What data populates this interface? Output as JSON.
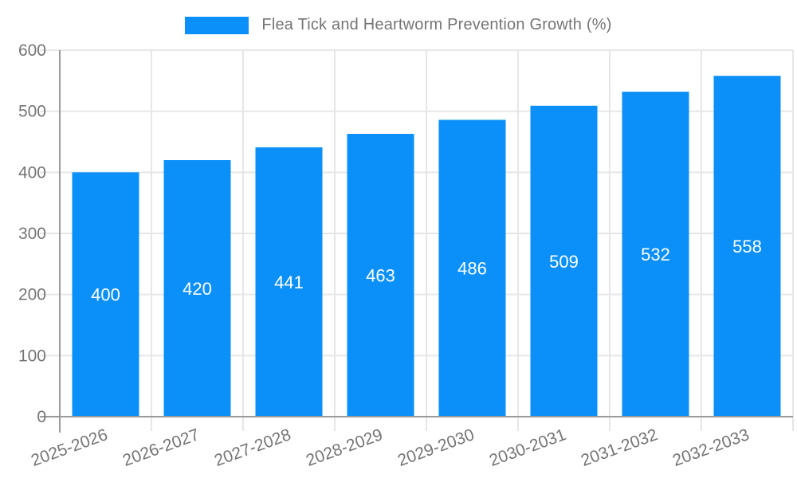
{
  "colors": {
    "bar": "#0a90f8",
    "axis": "#9a9a9a",
    "grid": "#e6e6e6",
    "text": "#757575",
    "value_label": "#ffffff",
    "background": "#ffffff"
  },
  "chart_data": {
    "type": "bar",
    "title": "Flea Tick and Heartworm Prevention Growth (%)",
    "categories": [
      "2025-2026",
      "2026-2027",
      "2027-2028",
      "2028-2029",
      "2029-2030",
      "2030-2031",
      "2031-2032",
      "2032-2033"
    ],
    "values": [
      400,
      420,
      441,
      463,
      486,
      509,
      532,
      558
    ],
    "xlabel": "",
    "ylabel": "",
    "ylim": [
      0,
      600
    ],
    "yticks": [
      0,
      100,
      200,
      300,
      400,
      500,
      600
    ],
    "grid": true,
    "legend_position": "top",
    "bar_labels_inside": true,
    "x_tick_rotation_deg": -20
  }
}
